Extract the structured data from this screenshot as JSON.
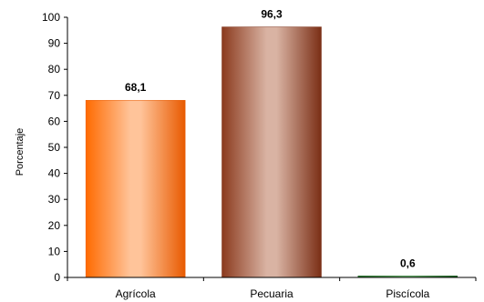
{
  "chart_data": {
    "type": "bar",
    "categories": [
      "Agrícola",
      "Pecuaria",
      "Piscícola"
    ],
    "values": [
      68.1,
      96.3,
      0.6
    ],
    "value_labels": [
      "68,1",
      "96,3",
      "0,6"
    ],
    "ylabel": "Porcentaje",
    "ylim": [
      0,
      100
    ],
    "ytick_step": 10,
    "yticks": [
      "0",
      "10",
      "20",
      "30",
      "40",
      "50",
      "60",
      "70",
      "80",
      "90",
      "100"
    ],
    "grid": false,
    "legend": "none",
    "bar_colors": [
      {
        "edge": "#ff6a00",
        "light": "#ffc49a",
        "dark": "#e85a00"
      },
      {
        "edge": "#8b3a1e",
        "light": "#d9b3a3",
        "dark": "#7a2e15"
      },
      {
        "edge": "#2e7d32",
        "light": "#7fc47f",
        "dark": "#1b5e20"
      }
    ],
    "axis_color": "#000000"
  }
}
